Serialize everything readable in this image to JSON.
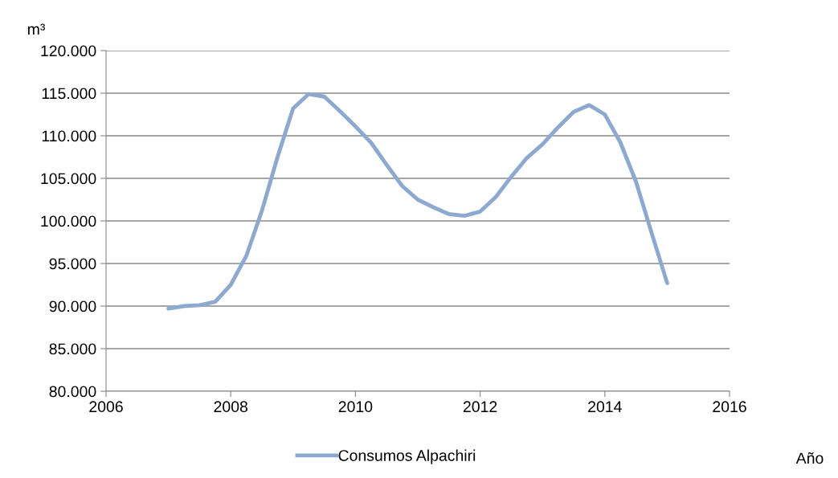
{
  "chart_data": {
    "type": "line",
    "ylabel": "m³",
    "xlabel": "Año",
    "x": [
      2007,
      2007.25,
      2007.5,
      2007.75,
      2008,
      2008.25,
      2008.5,
      2008.75,
      2009,
      2009.25,
      2009.5,
      2009.75,
      2010,
      2010.25,
      2010.5,
      2010.75,
      2011,
      2011.25,
      2011.5,
      2011.75,
      2012,
      2012.25,
      2012.5,
      2012.75,
      2013,
      2013.25,
      2013.5,
      2013.75,
      2014,
      2014.25,
      2014.5,
      2014.75,
      2015
    ],
    "series": [
      {
        "name": "Consumos Alpachiri",
        "color": "#8ea9d0",
        "values": [
          89700,
          90000,
          90100,
          90500,
          92500,
          95900,
          101200,
          107500,
          113200,
          114900,
          114600,
          112900,
          111100,
          109200,
          106600,
          104100,
          102500,
          101600,
          100800,
          100600,
          101100,
          102800,
          105200,
          107400,
          109000,
          111000,
          112800,
          113600,
          112500,
          109200,
          104600,
          98600,
          92700
        ]
      }
    ],
    "xlim": [
      2006,
      2016
    ],
    "xticks": [
      2006,
      2008,
      2010,
      2012,
      2014,
      2016
    ],
    "ylim": [
      80000,
      120000
    ],
    "yticks": [
      {
        "value": 80000,
        "label": "80.000"
      },
      {
        "value": 85000,
        "label": "85.000"
      },
      {
        "value": 90000,
        "label": "90.000"
      },
      {
        "value": 95000,
        "label": "95.000"
      },
      {
        "value": 100000,
        "label": "100.000"
      },
      {
        "value": 105000,
        "label": "105.000"
      },
      {
        "value": 110000,
        "label": "110.000"
      },
      {
        "value": 115000,
        "label": "115.000"
      },
      {
        "value": 120000,
        "label": "120.000"
      }
    ],
    "grid": "y",
    "legend": "bottom",
    "line_style": "solid",
    "marker": "none"
  }
}
